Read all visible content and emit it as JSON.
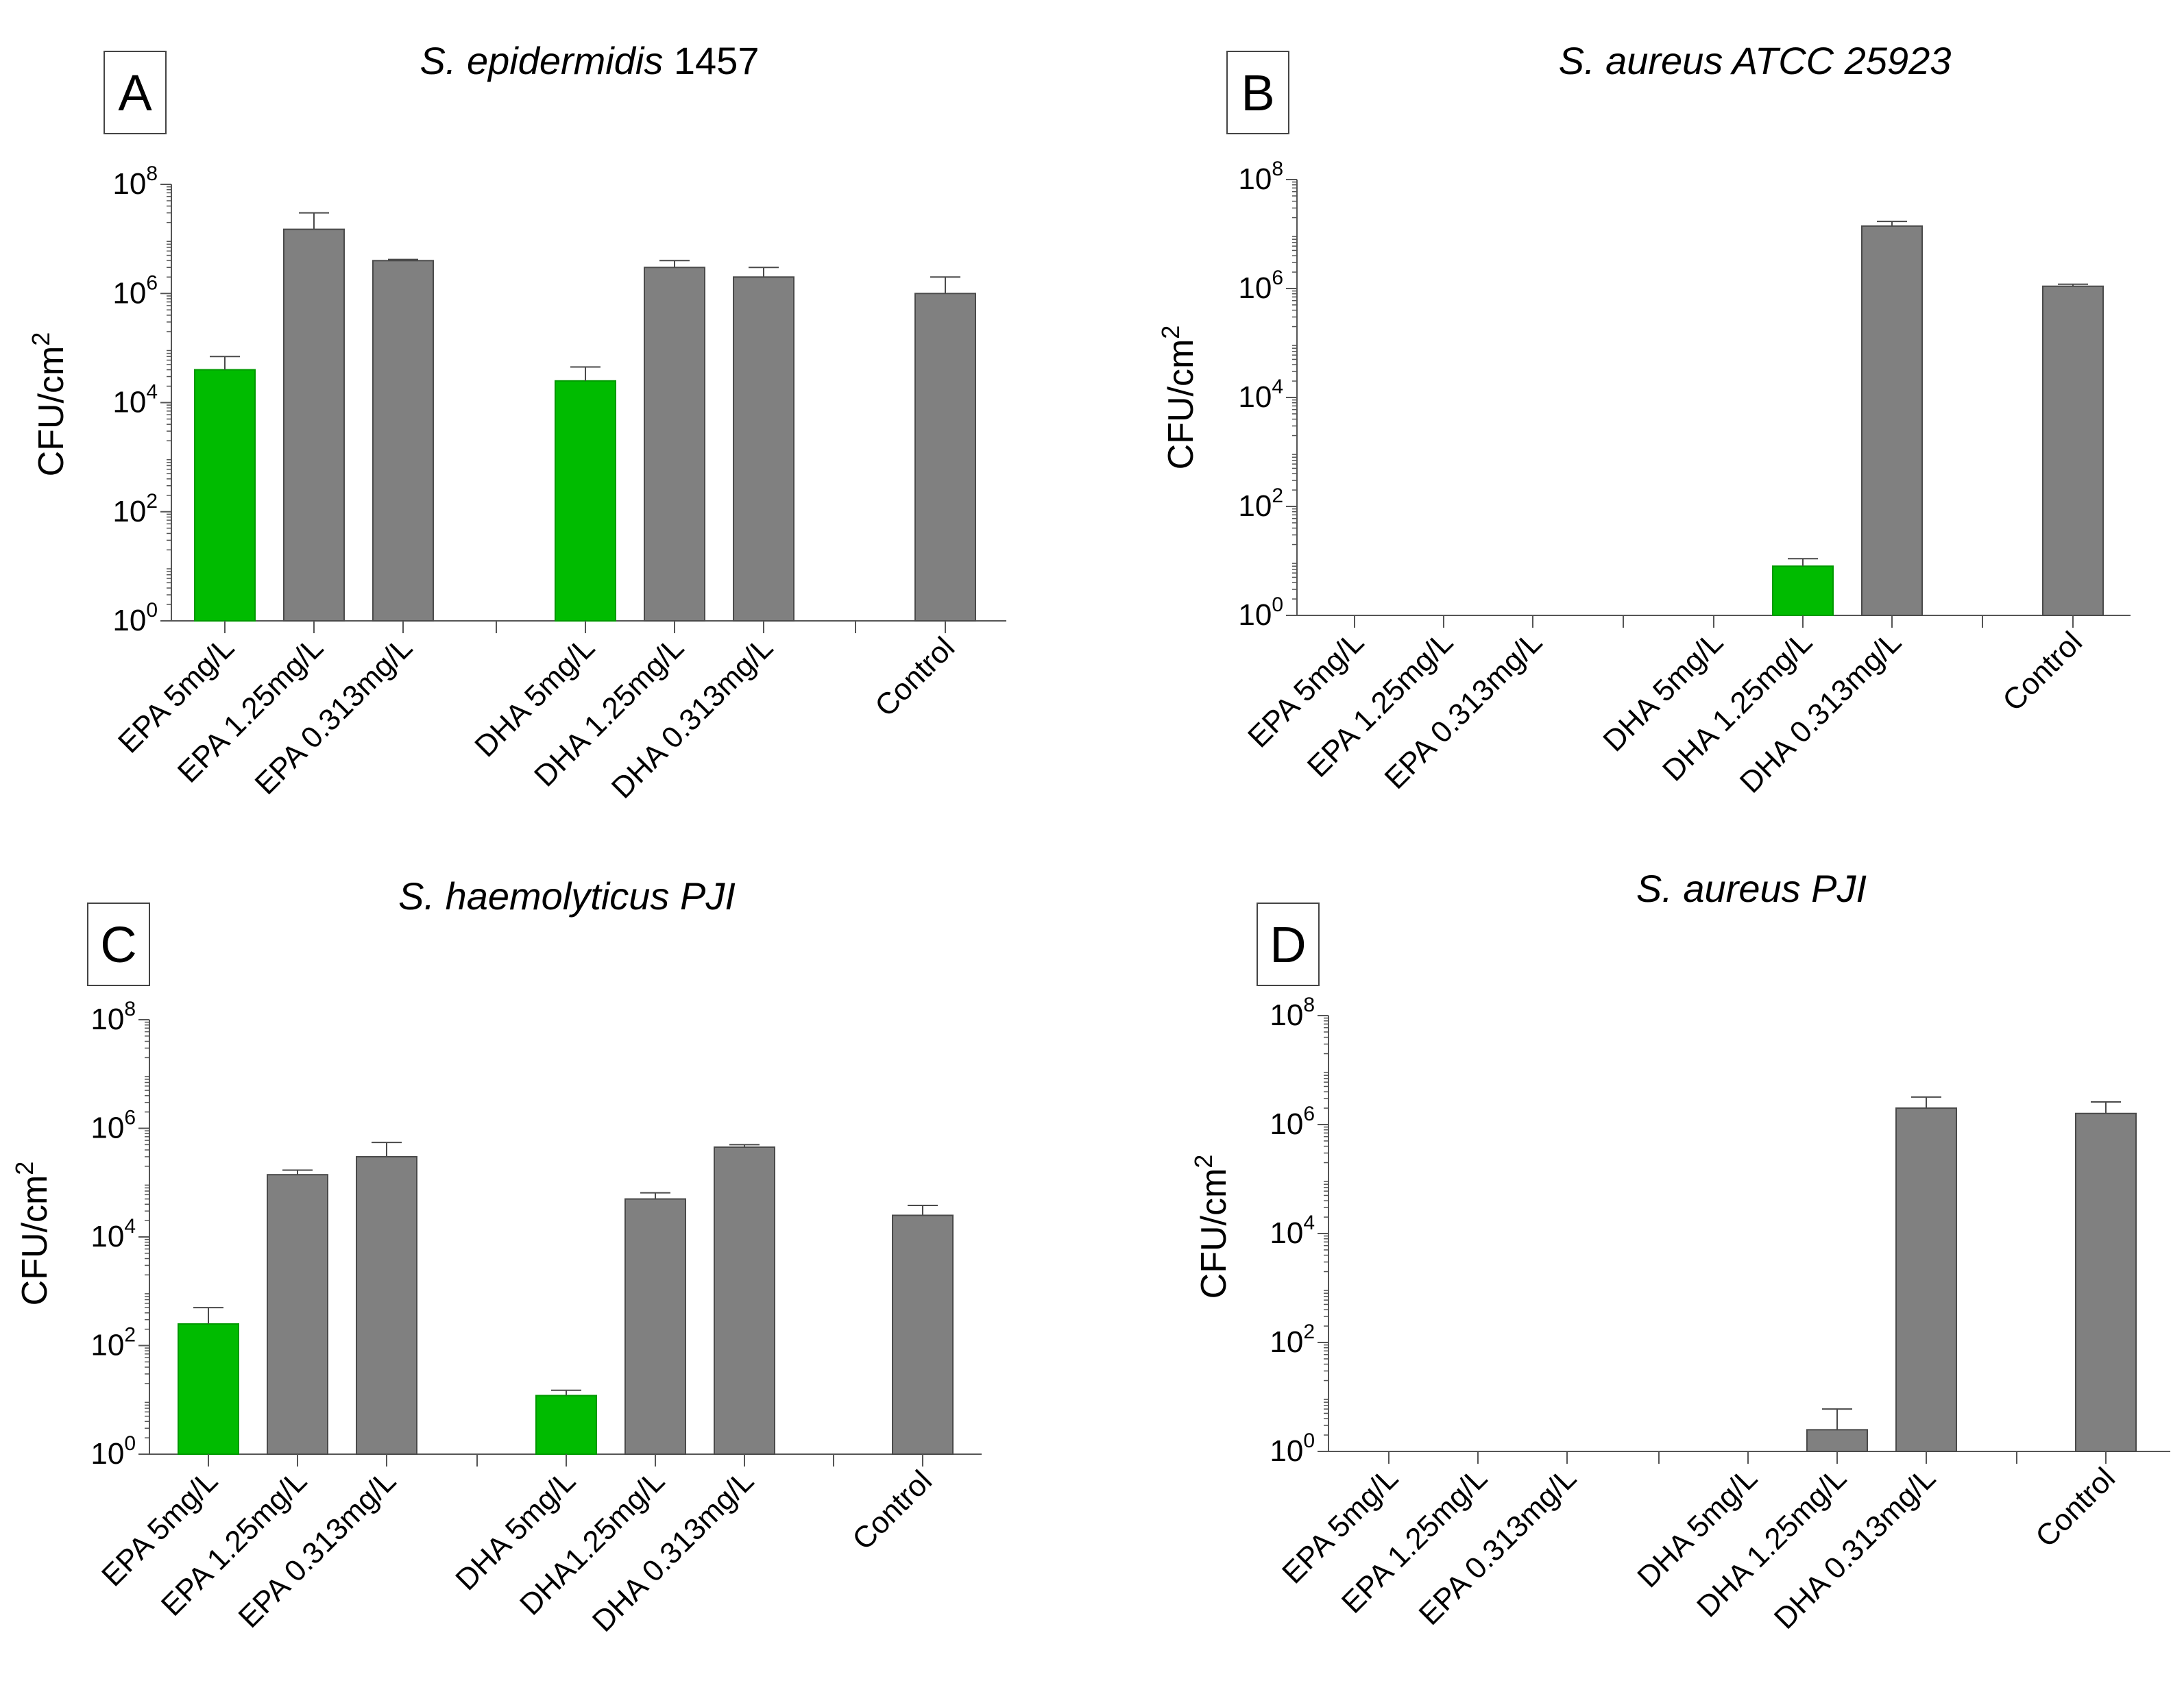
{
  "colors": {
    "green": "#00bb00",
    "gray": "#808080",
    "axis": "#555555"
  },
  "chart_data": [
    {
      "type": "bar",
      "panel_label": "A",
      "title": "S. epidermidis 1457",
      "title_parts": [
        {
          "text": "S. epidermidis",
          "italic": true
        },
        {
          "text": " 1457",
          "italic": false
        }
      ],
      "ylabel": "CFU/cm",
      "ylabel_sup": "2",
      "y_scale": "log10",
      "ylim_exp": [
        0,
        8
      ],
      "y_ticks_exp": [
        0,
        2,
        4,
        6,
        8
      ],
      "y_tick_labels": [
        "10",
        "10",
        "10",
        "10",
        "10"
      ],
      "y_tick_sup": [
        "0",
        "2",
        "4",
        "6",
        "8"
      ],
      "categories": [
        "EPA 5mg/L",
        "EPA 1.25mg/L",
        "EPA 0.313mg/L",
        "DHA 5mg/L",
        "DHA 1.25mg/L",
        "DHA 0.313mg/L",
        "Control"
      ],
      "values": [
        40000,
        15000000,
        4000000,
        25000,
        3000000,
        2000000,
        1000000
      ],
      "errors_upper": [
        70000,
        30000000,
        4200000,
        45000,
        4000000,
        3000000,
        2000000
      ],
      "bar_colors": [
        "green",
        "gray",
        "gray",
        "green",
        "gray",
        "gray",
        "gray"
      ]
    },
    {
      "type": "bar",
      "panel_label": "B",
      "title": "S. aureus ATCC 25923",
      "title_parts": [
        {
          "text": "S. aureus ATCC 25923",
          "italic": true
        }
      ],
      "ylabel": "CFU/cm",
      "ylabel_sup": "2",
      "y_scale": "log10",
      "ylim_exp": [
        0,
        8
      ],
      "y_ticks_exp": [
        0,
        2,
        4,
        6,
        8
      ],
      "y_tick_labels": [
        "10",
        "10",
        "10",
        "10",
        "10"
      ],
      "y_tick_sup": [
        "0",
        "2",
        "4",
        "6",
        "8"
      ],
      "categories": [
        "EPA 5mg/L",
        "EPA 1.25mg/L",
        "EPA 0.313mg/L",
        "DHA 5mg/L",
        "DHA 1.25mg/L",
        "DHA 0.313mg/L",
        "Control"
      ],
      "values": [
        0,
        0,
        0,
        0,
        8,
        14000000,
        1100000
      ],
      "errors_upper": [
        0,
        0,
        0,
        0,
        11,
        17000000,
        1200000
      ],
      "bar_colors": [
        "gray",
        "gray",
        "gray",
        "gray",
        "green",
        "gray",
        "gray"
      ]
    },
    {
      "type": "bar",
      "panel_label": "C",
      "title": "S. haemolyticus PJI",
      "title_parts": [
        {
          "text": "S. haemolyticus PJI",
          "italic": true
        }
      ],
      "ylabel": "CFU/cm",
      "ylabel_sup": "2",
      "y_scale": "log10",
      "ylim_exp": [
        0,
        8
      ],
      "y_ticks_exp": [
        0,
        2,
        4,
        6,
        8
      ],
      "y_tick_labels": [
        "10",
        "10",
        "10",
        "10",
        "10"
      ],
      "y_tick_sup": [
        "0",
        "2",
        "4",
        "6",
        "8"
      ],
      "categories": [
        "EPA 5mg/L",
        "EPA 1.25mg/L",
        "EPA 0.313mg/L",
        "DHA 5mg/L",
        "DHA1.25mg/L",
        "DHA 0.313mg/L",
        "Control"
      ],
      "values": [
        250,
        140000,
        300000,
        12,
        50000,
        450000,
        25000
      ],
      "errors_upper": [
        500,
        170000,
        550000,
        15,
        65000,
        500000,
        38000
      ],
      "bar_colors": [
        "green",
        "gray",
        "gray",
        "green",
        "gray",
        "gray",
        "gray"
      ]
    },
    {
      "type": "bar",
      "panel_label": "D",
      "title": "S. aureus PJI",
      "title_parts": [
        {
          "text": "S. aureus PJI",
          "italic": true
        }
      ],
      "ylabel": "CFU/cm",
      "ylabel_sup": "2",
      "y_scale": "log10",
      "ylim_exp": [
        0,
        8
      ],
      "y_ticks_exp": [
        0,
        2,
        4,
        6,
        8
      ],
      "y_tick_labels": [
        "10",
        "10",
        "10",
        "10",
        "10"
      ],
      "y_tick_sup": [
        "0",
        "2",
        "4",
        "6",
        "8"
      ],
      "categories": [
        "EPA 5mg/L",
        "EPA 1.25mg/L",
        "EPA 0.313mg/L",
        "DHA 5mg/L",
        "DHA 1.25mg/L",
        "DHA 0.313mg/L",
        "Control"
      ],
      "values": [
        0,
        0,
        0,
        0,
        2.5,
        2000000,
        1600000
      ],
      "errors_upper": [
        0,
        0,
        0,
        0,
        6,
        3200000,
        2600000
      ],
      "bar_colors": [
        "gray",
        "gray",
        "gray",
        "gray",
        "gray",
        "gray",
        "gray"
      ]
    }
  ]
}
